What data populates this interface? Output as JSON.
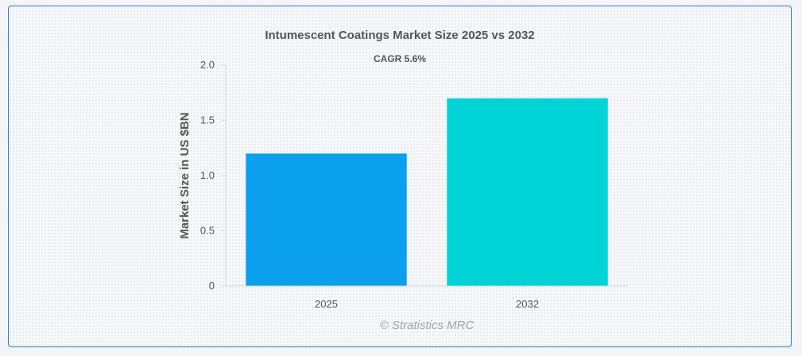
{
  "chart_data": {
    "type": "bar",
    "title": "Intumescent Coatings Market Size 2025 vs 2032",
    "subtitle": "CAGR 5.6%",
    "xlabel": "",
    "ylabel": "Market Size in US $BN",
    "categories": [
      "2025",
      "2032"
    ],
    "values": [
      1.2,
      1.7
    ],
    "bar_colors": [
      "#0aa0ee",
      "#00d3d6"
    ],
    "ylim": [
      0,
      2.0
    ],
    "yticks": [
      0,
      0.5,
      1.0,
      1.5,
      2.0
    ],
    "ytick_labels": [
      "0",
      "0.5",
      "1.0",
      "1.5",
      "2.0"
    ],
    "grid": false,
    "legend": "none"
  },
  "watermark": "© Stratistics MRC"
}
